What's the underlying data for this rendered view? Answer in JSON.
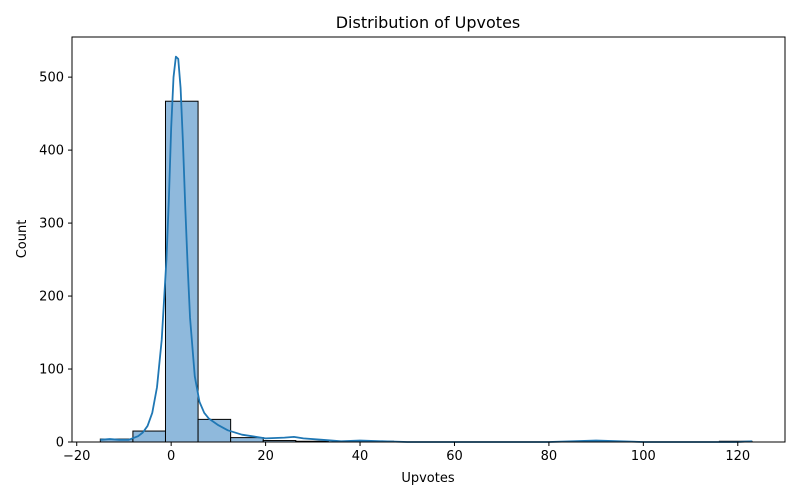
{
  "chart_data": {
    "type": "bar",
    "subtype": "histogram-with-kde",
    "title": "Distribution of Upvotes",
    "xlabel": "Upvotes",
    "ylabel": "Count",
    "xlim": [
      -21,
      130
    ],
    "ylim": [
      0,
      555
    ],
    "xticks": [
      -20,
      0,
      20,
      40,
      60,
      80,
      100,
      120
    ],
    "yticks": [
      0,
      100,
      200,
      300,
      400,
      500
    ],
    "bar_fill": "#8fb9dc",
    "bar_edge": "#000000",
    "line_color": "#1f77b4",
    "bins": [
      {
        "start": -15,
        "end": -8.1,
        "count": 4
      },
      {
        "start": -8.1,
        "end": -1.2,
        "count": 15
      },
      {
        "start": -1.2,
        "end": 5.7,
        "count": 467
      },
      {
        "start": 5.7,
        "end": 12.6,
        "count": 31
      },
      {
        "start": 12.6,
        "end": 19.5,
        "count": 6
      },
      {
        "start": 19.5,
        "end": 26.4,
        "count": 2
      },
      {
        "start": 26.4,
        "end": 33.3,
        "count": 1
      },
      {
        "start": 33.3,
        "end": 40.2,
        "count": 0
      },
      {
        "start": 40.2,
        "end": 47.1,
        "count": 1
      },
      {
        "start": 47.1,
        "end": 54.0,
        "count": 0
      },
      {
        "start": 54.0,
        "end": 60.9,
        "count": 0
      },
      {
        "start": 60.9,
        "end": 67.8,
        "count": 0
      },
      {
        "start": 67.8,
        "end": 74.7,
        "count": 0
      },
      {
        "start": 74.7,
        "end": 81.6,
        "count": 0
      },
      {
        "start": 81.6,
        "end": 88.5,
        "count": 0
      },
      {
        "start": 88.5,
        "end": 95.4,
        "count": 1
      },
      {
        "start": 95.4,
        "end": 102.3,
        "count": 0
      },
      {
        "start": 102.3,
        "end": 109.2,
        "count": 0
      },
      {
        "start": 109.2,
        "end": 116.1,
        "count": 0
      },
      {
        "start": 116.1,
        "end": 123.0,
        "count": 1
      }
    ],
    "kde": {
      "x": [
        -15,
        -13,
        -11,
        -9,
        -7,
        -6,
        -5,
        -4,
        -3,
        -2,
        -1,
        -0.5,
        0,
        0.5,
        1,
        1.5,
        2,
        2.5,
        3,
        3.5,
        4,
        5,
        6,
        7,
        8,
        10,
        12,
        15,
        20,
        24,
        26,
        28,
        32,
        36,
        40,
        45,
        50,
        60,
        70,
        80,
        90,
        100,
        110,
        120,
        123
      ],
      "y": [
        3,
        4,
        3,
        3,
        8,
        13,
        22,
        40,
        75,
        140,
        250,
        330,
        430,
        500,
        528,
        525,
        485,
        410,
        320,
        240,
        170,
        90,
        55,
        40,
        32,
        23,
        16,
        10,
        5,
        6,
        7,
        5,
        3,
        1,
        2,
        1,
        0,
        0,
        0,
        0,
        2,
        0,
        0,
        0,
        1
      ]
    }
  }
}
